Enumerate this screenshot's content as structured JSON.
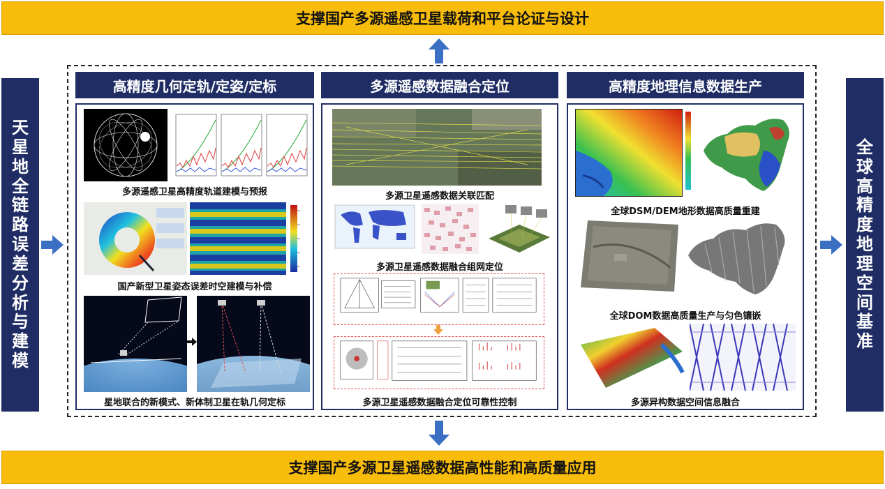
{
  "top_banner": "支撑国产多源遥感卫星载荷和平台论证与设计",
  "bottom_banner": "支撑国产多源卫星遥感数据高性能和高质量应用",
  "left_bar": [
    "天",
    "星",
    "地",
    "全",
    "链",
    "路",
    "误",
    "差",
    "分",
    "析",
    "与",
    "建",
    "模"
  ],
  "right_bar": [
    "全",
    "球",
    "高",
    "精",
    "度",
    "地",
    "理",
    "空",
    "间",
    "基",
    "准"
  ],
  "columns": [
    {
      "title": "高精度几何定轨/定姿/定标",
      "captions": [
        "多源遥感卫星高精度轨道建模与预报",
        "国产新型卫星姿态误差时空建模与补偿",
        "星地联合的新模式、新体制卫星在轨几何定标"
      ]
    },
    {
      "title": "多源遥感数据融合定位",
      "captions": [
        "多源卫星遥感数据关联匹配",
        "多源卫星遥感数据融合组网定位",
        "多源卫星遥感数据融合定位可靠性控制"
      ]
    },
    {
      "title": "高精度地理信息数据生产",
      "captions": [
        "全球DSM/DEM地形数据高质量重建",
        "全球DOM数据高质量生产与匀色镶嵌",
        "多源异构数据空间信息融合"
      ]
    }
  ],
  "colors": {
    "banner": "#f8bc0a",
    "navy": "#1f2d64",
    "arrow": "#3a6fc4"
  }
}
